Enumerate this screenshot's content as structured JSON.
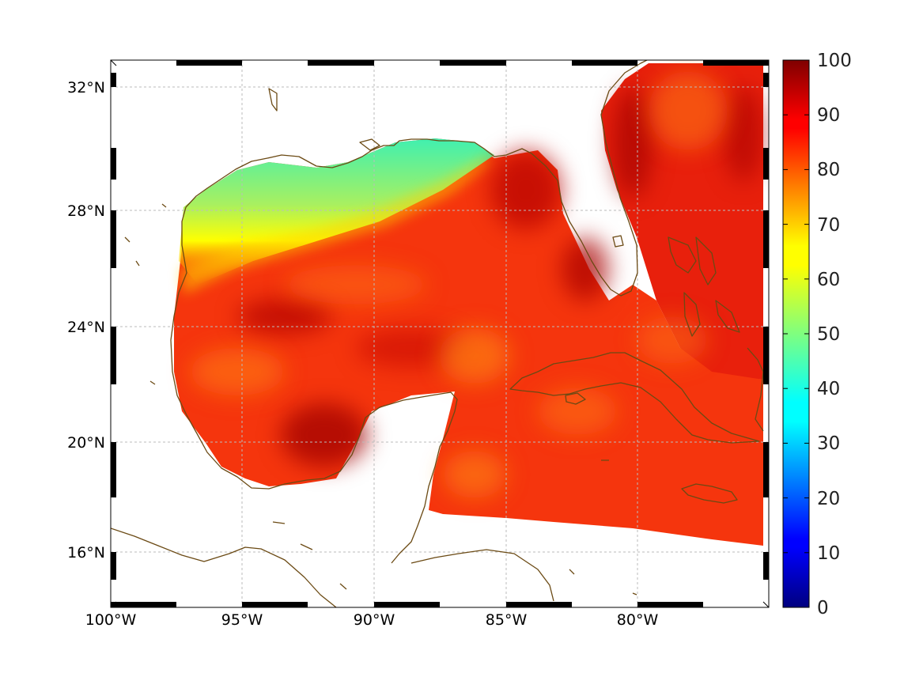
{
  "chart_data": {
    "type": "heatmap",
    "map_projection": "Mercator",
    "lon_range": [
      -100,
      -75
    ],
    "lat_range": [
      14.2,
      33
    ],
    "grid": true,
    "x_ticks": [
      {
        "lon": -100,
        "label": "100°W"
      },
      {
        "lon": -95,
        "label": "95°W"
      },
      {
        "lon": -90,
        "label": "90°W"
      },
      {
        "lon": -85,
        "label": "85°W"
      },
      {
        "lon": -80,
        "label": "80°W"
      }
    ],
    "y_ticks": [
      {
        "lat": 32,
        "label": "32°N"
      },
      {
        "lat": 28,
        "label": "28°N"
      },
      {
        "lat": 24,
        "label": "24°N"
      },
      {
        "lat": 20,
        "label": "20°N"
      },
      {
        "lat": 16,
        "label": "16°N"
      }
    ],
    "colorbar": {
      "colormap": "jet",
      "range": [
        0,
        100
      ],
      "ticks": [
        "0",
        "10",
        "20",
        "30",
        "40",
        "50",
        "60",
        "70",
        "80",
        "90",
        "100"
      ],
      "orientation": "vertical",
      "position": "right"
    },
    "approximate_values": [
      {
        "region": "northwestern Gulf shelf (Texas–Louisiana)",
        "value": 45
      },
      {
        "region": "northeastern Gulf shelf (Mississippi–Alabama)",
        "value": 58
      },
      {
        "region": "central Gulf of Mexico",
        "value": 85
      },
      {
        "region": "Bay of Campeche",
        "value": 92
      },
      {
        "region": "eastern Gulf near Florida",
        "value": 93
      },
      {
        "region": "Atlantic east of Florida",
        "value": 88
      },
      {
        "region": "northwestern Caribbean Sea",
        "value": 85
      }
    ],
    "colors": {
      "coastline": "#6b4a14",
      "frame": "#000000",
      "grid": "#bbbbbb"
    }
  }
}
